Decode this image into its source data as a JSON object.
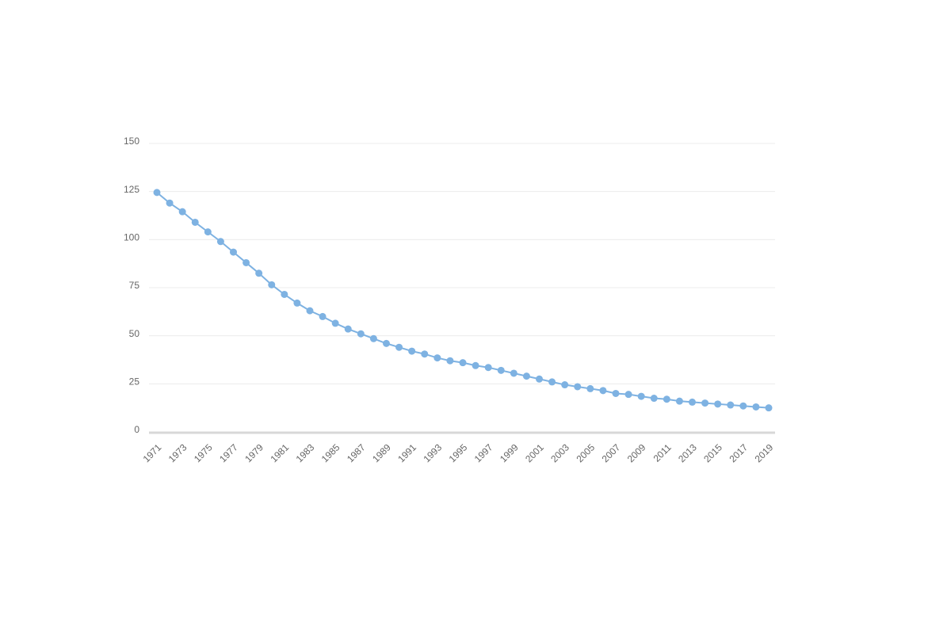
{
  "chart_data": {
    "type": "line",
    "x": [
      1971,
      1972,
      1973,
      1974,
      1975,
      1976,
      1977,
      1978,
      1979,
      1980,
      1981,
      1982,
      1983,
      1984,
      1985,
      1986,
      1987,
      1988,
      1989,
      1990,
      1991,
      1992,
      1993,
      1994,
      1995,
      1996,
      1997,
      1998,
      1999,
      2000,
      2001,
      2002,
      2003,
      2004,
      2005,
      2006,
      2007,
      2008,
      2009,
      2010,
      2011,
      2012,
      2013,
      2014,
      2015,
      2016,
      2017,
      2018,
      2019
    ],
    "values": [
      124.5,
      119,
      114.5,
      109,
      104,
      99,
      93.5,
      88,
      82.5,
      76.5,
      71.5,
      67,
      63,
      60,
      56.5,
      53.5,
      51,
      48.5,
      46,
      44,
      42,
      40.5,
      38.5,
      37,
      36,
      34.5,
      33.5,
      32,
      30.5,
      29,
      27.5,
      26,
      24.5,
      23.5,
      22.5,
      21.5,
      20,
      19.5,
      18.5,
      17.5,
      17,
      16,
      15.5,
      15,
      14.5,
      14,
      13.5,
      13,
      12.5
    ],
    "color": "#7eb2e2",
    "xlim": [
      1971,
      2019
    ],
    "xticks": [
      1971,
      1973,
      1975,
      1977,
      1979,
      1981,
      1983,
      1985,
      1987,
      1989,
      1991,
      1993,
      1995,
      1997,
      1999,
      2001,
      2003,
      2005,
      2007,
      2009,
      2011,
      2013,
      2015,
      2017,
      2019
    ],
    "ylim": [
      0,
      150
    ],
    "yticks": [
      0,
      25,
      50,
      75,
      100,
      125,
      150
    ],
    "grid": true
  }
}
